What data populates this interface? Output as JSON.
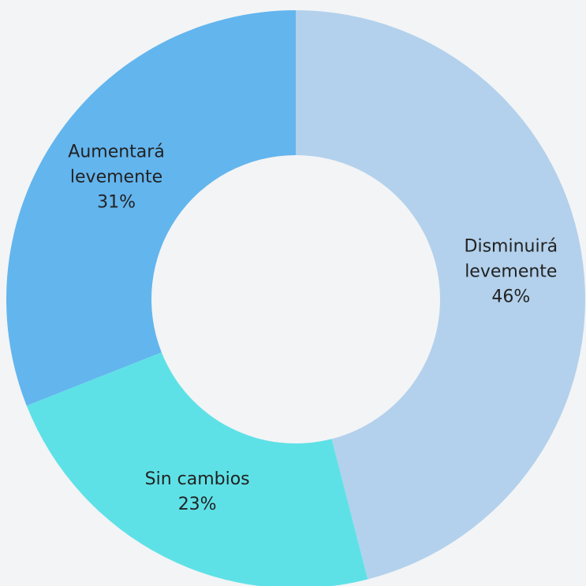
{
  "chart_data": {
    "type": "donut",
    "categories": [
      "Disminuirá levemente",
      "Sin cambios",
      "Aumentará levemente"
    ],
    "values": [
      46,
      23,
      31
    ],
    "value_labels": [
      "46%",
      "23%",
      "31%"
    ],
    "colors": [
      "#b3d1ec",
      "#5ee1e6",
      "#63b5ee"
    ]
  }
}
